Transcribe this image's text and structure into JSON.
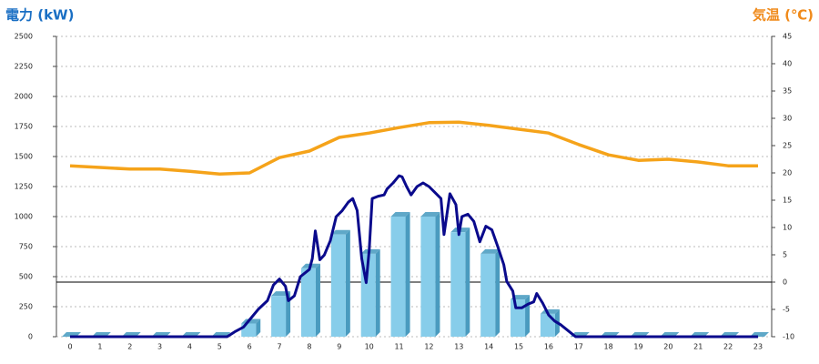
{
  "chart_data": {
    "type": "bar",
    "y_label": "電力 (kW)",
    "y2_label": "気温 (℃)",
    "categories": [
      "0",
      "1",
      "2",
      "3",
      "4",
      "5",
      "6",
      "7",
      "8",
      "9",
      "10",
      "11",
      "12",
      "13",
      "14",
      "15",
      "16",
      "17",
      "18",
      "19",
      "20",
      "21",
      "22",
      "23"
    ],
    "ylim": [
      0,
      2500
    ],
    "yticks": [
      0,
      250,
      500,
      750,
      1000,
      1250,
      1500,
      1750,
      2000,
      2250,
      2500
    ],
    "y2lim": [
      -10,
      45
    ],
    "y2ticks": [
      -10,
      -5,
      0,
      5,
      10,
      15,
      20,
      25,
      30,
      35,
      40,
      45
    ],
    "grid": true,
    "series": [
      {
        "type": "bar",
        "color": "#87cdea",
        "values": [
          0,
          0,
          0,
          0,
          0,
          0,
          110,
          340,
          570,
          850,
          690,
          1000,
          1000,
          870,
          690,
          310,
          190,
          0,
          0,
          0,
          0,
          0,
          0,
          0
        ]
      },
      {
        "type": "line",
        "color": "#0a0a8c",
        "x": [
          0,
          5.25,
          5.5,
          5.8,
          6.0,
          6.3,
          6.6,
          6.8,
          7.0,
          7.2,
          7.3,
          7.5,
          7.7,
          8.0,
          8.1,
          8.2,
          8.35,
          8.5,
          8.7,
          8.9,
          9.1,
          9.3,
          9.45,
          9.6,
          9.75,
          9.9,
          10.0,
          10.1,
          10.3,
          10.5,
          10.6,
          10.8,
          11.0,
          11.1,
          11.25,
          11.4,
          11.6,
          11.8,
          12.0,
          12.2,
          12.4,
          12.5,
          12.7,
          12.9,
          13.0,
          13.1,
          13.3,
          13.5,
          13.7,
          13.9,
          14.1,
          14.3,
          14.5,
          14.6,
          14.8,
          14.9,
          15.1,
          15.3,
          15.5,
          15.6,
          15.8,
          16.0,
          16.2,
          16.4,
          16.7,
          16.9,
          23
        ],
        "values": [
          0,
          0,
          40,
          80,
          140,
          230,
          300,
          430,
          480,
          420,
          300,
          340,
          500,
          560,
          650,
          880,
          640,
          680,
          800,
          1000,
          1050,
          1120,
          1150,
          1050,
          650,
          450,
          720,
          1150,
          1170,
          1180,
          1230,
          1280,
          1340,
          1330,
          1250,
          1180,
          1250,
          1280,
          1250,
          1200,
          1150,
          850,
          1190,
          1100,
          850,
          1000,
          1020,
          960,
          790,
          920,
          890,
          750,
          600,
          460,
          380,
          240,
          240,
          270,
          290,
          360,
          280,
          180,
          130,
          100,
          40,
          0,
          0
        ]
      },
      {
        "type": "line",
        "axis": "y2",
        "color": "#f5a31a",
        "values": [
          21.3,
          21,
          20.7,
          20.7,
          20.3,
          19.8,
          20,
          22.8,
          24,
          26.5,
          27.3,
          28.3,
          29.2,
          29.3,
          28.7,
          28,
          27.3,
          25.2,
          23.3,
          22.3,
          22.5,
          22,
          21.3,
          21.3
        ]
      }
    ]
  }
}
